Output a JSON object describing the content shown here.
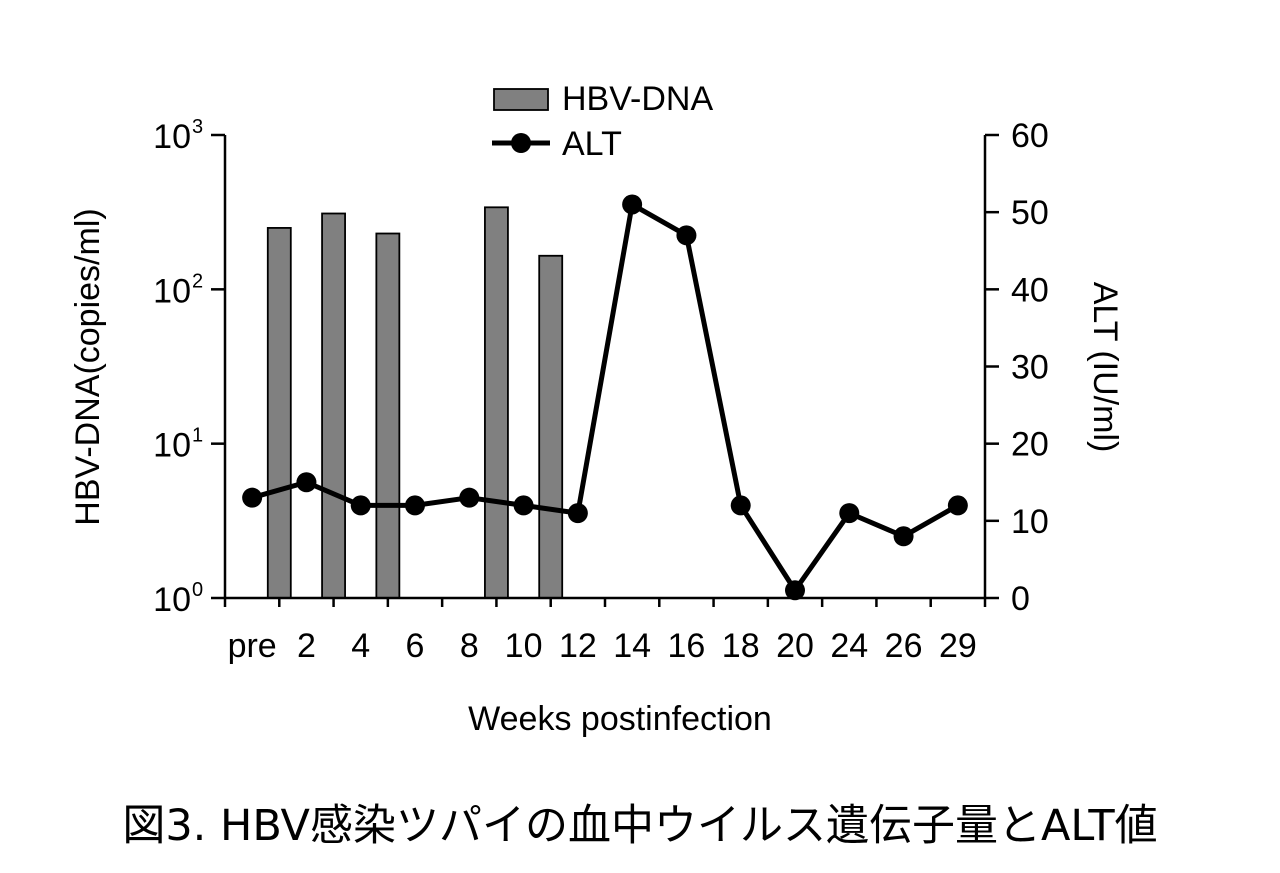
{
  "caption": "図3. HBV感染ツパイの血中ウイルス遺伝子量とALT値",
  "chart_data": {
    "type": "bar",
    "xlabel": "Weeks postinfection",
    "categories": [
      "pre",
      "2",
      "4",
      "6",
      "8",
      "10",
      "12",
      "14",
      "16",
      "18",
      "20",
      "24",
      "26",
      "29"
    ],
    "left_axis": {
      "label": "HBV-DNA(copies/ml)",
      "scale": "log",
      "ylim": [
        1,
        1000
      ],
      "ticks": [
        {
          "value": 1,
          "base": "10",
          "exp": "0"
        },
        {
          "value": 10,
          "base": "10",
          "exp": "1"
        },
        {
          "value": 100,
          "base": "10",
          "exp": "2"
        },
        {
          "value": 1000,
          "base": "10",
          "exp": "3"
        }
      ]
    },
    "right_axis": {
      "label": "ALT (IU/ml)",
      "scale": "linear",
      "ylim": [
        0,
        60
      ],
      "ticks": [
        "0",
        "10",
        "20",
        "30",
        "40",
        "50",
        "60"
      ]
    },
    "series": [
      {
        "name": "HBV-DNA",
        "kind": "bar",
        "axis": "left",
        "color": "#808080",
        "x": [
          "2",
          "4",
          "6",
          "10",
          "12"
        ],
        "values": [
          250,
          310,
          230,
          340,
          165
        ]
      },
      {
        "name": "ALT",
        "kind": "line",
        "axis": "right",
        "color": "#000000",
        "values": [
          13,
          15,
          12,
          12,
          13,
          12,
          11,
          51,
          47,
          12,
          1,
          11,
          8,
          12
        ]
      }
    ],
    "legend": {
      "position": "top-center"
    },
    "grid": false
  }
}
